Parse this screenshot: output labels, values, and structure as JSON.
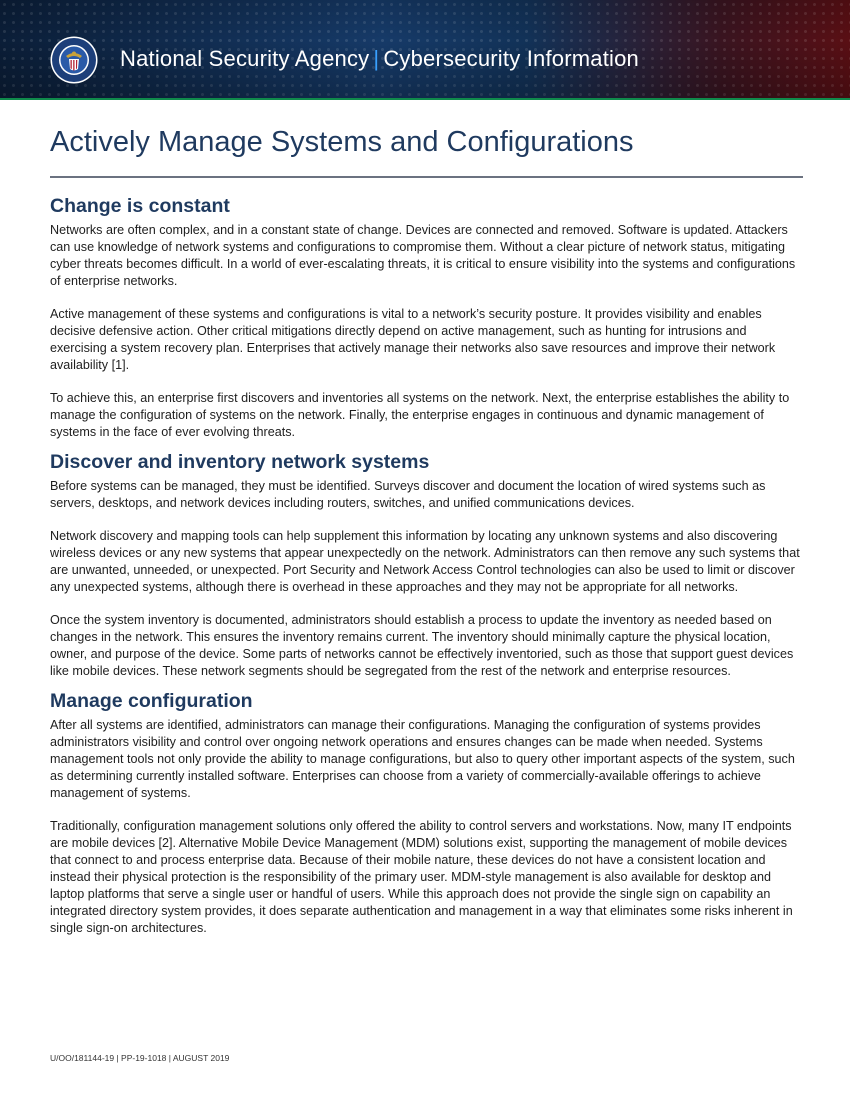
{
  "banner": {
    "org": "National Security Agency",
    "separator": "|",
    "program": "Cybersecurity Information",
    "colors": {
      "background": "#163a68",
      "accent_bar": "#0f8a4b",
      "separator": "#39a0ff"
    },
    "seal_icon": "nsa-seal-icon"
  },
  "title": "Actively Manage Systems and Configurations",
  "sections": [
    {
      "heading": "Change is constant",
      "paragraphs": [
        "Networks are often complex, and in a constant state of change. Devices are connected and removed. Software is updated. Attackers can use knowledge of network systems and configurations to compromise them. Without a clear picture of network status, mitigating cyber threats becomes difficult. In a world of ever-escalating threats, it is critical to ensure visibility into the systems and configurations of enterprise networks.",
        "Active management of these systems and configurations is vital to a network’s security posture. It provides visibility and enables decisive defensive action. Other critical mitigations directly depend on active management, such as hunting for intrusions and exercising a system recovery plan. Enterprises that actively manage their networks also save resources and improve their network availability [1].",
        "To achieve this, an enterprise first discovers and inventories all systems on the network. Next, the enterprise establishes the ability to manage the configuration of systems on the network. Finally, the enterprise engages in continuous and dynamic management of systems in the face of ever evolving threats."
      ]
    },
    {
      "heading": "Discover and inventory network systems",
      "paragraphs": [
        "Before systems can be managed, they must be identified. Surveys discover and document the location of wired systems such as servers, desktops, and network devices including routers, switches, and unified communications devices.",
        "Network discovery and mapping tools can help supplement this information by locating any unknown systems and also discovering wireless devices or any new systems that appear unexpectedly on the network. Administrators can then remove any such systems that are unwanted, unneeded, or unexpected. Port Security and Network Access Control technologies can also be used to limit or discover any unexpected systems, although there is overhead in these approaches and they may not be appropriate for all networks.",
        "Once the system inventory is documented, administrators should establish a process to update the inventory as needed based on changes in the network. This ensures the inventory remains current. The inventory should minimally capture the physical location, owner, and purpose of the device. Some parts of networks cannot be effectively inventoried, such as those that support guest devices like mobile devices. These network segments should be segregated from the rest of the network and enterprise resources."
      ]
    },
    {
      "heading": "Manage configuration",
      "paragraphs": [
        "After all systems are identified, administrators can manage their configurations. Managing the configuration of systems provides administrators visibility and control over ongoing network operations and ensures changes can be made when needed. Systems management tools not only provide the ability to manage configurations, but also to query other important aspects of the system, such as determining currently installed software. Enterprises can choose from a variety of commercially-available offerings to achieve management of systems.",
        "Traditionally, configuration management solutions only offered the ability to control servers and workstations. Now, many IT endpoints are mobile devices [2]. Alternative Mobile Device Management (MDM) solutions exist, supporting the management of mobile devices that connect to and process enterprise data. Because of their mobile nature, these devices do not have a consistent location and instead their physical protection is the responsibility of the primary user. MDM-style management is also available for desktop and laptop platforms that serve a single user or handful of users. While this approach does not provide the single sign on capability an integrated directory system provides, it does separate authentication and management in a way that eliminates some risks inherent in single sign-on architectures."
      ]
    }
  ],
  "footer": "U/OO/181144-19 | PP-19-1018 | AUGUST 2019"
}
